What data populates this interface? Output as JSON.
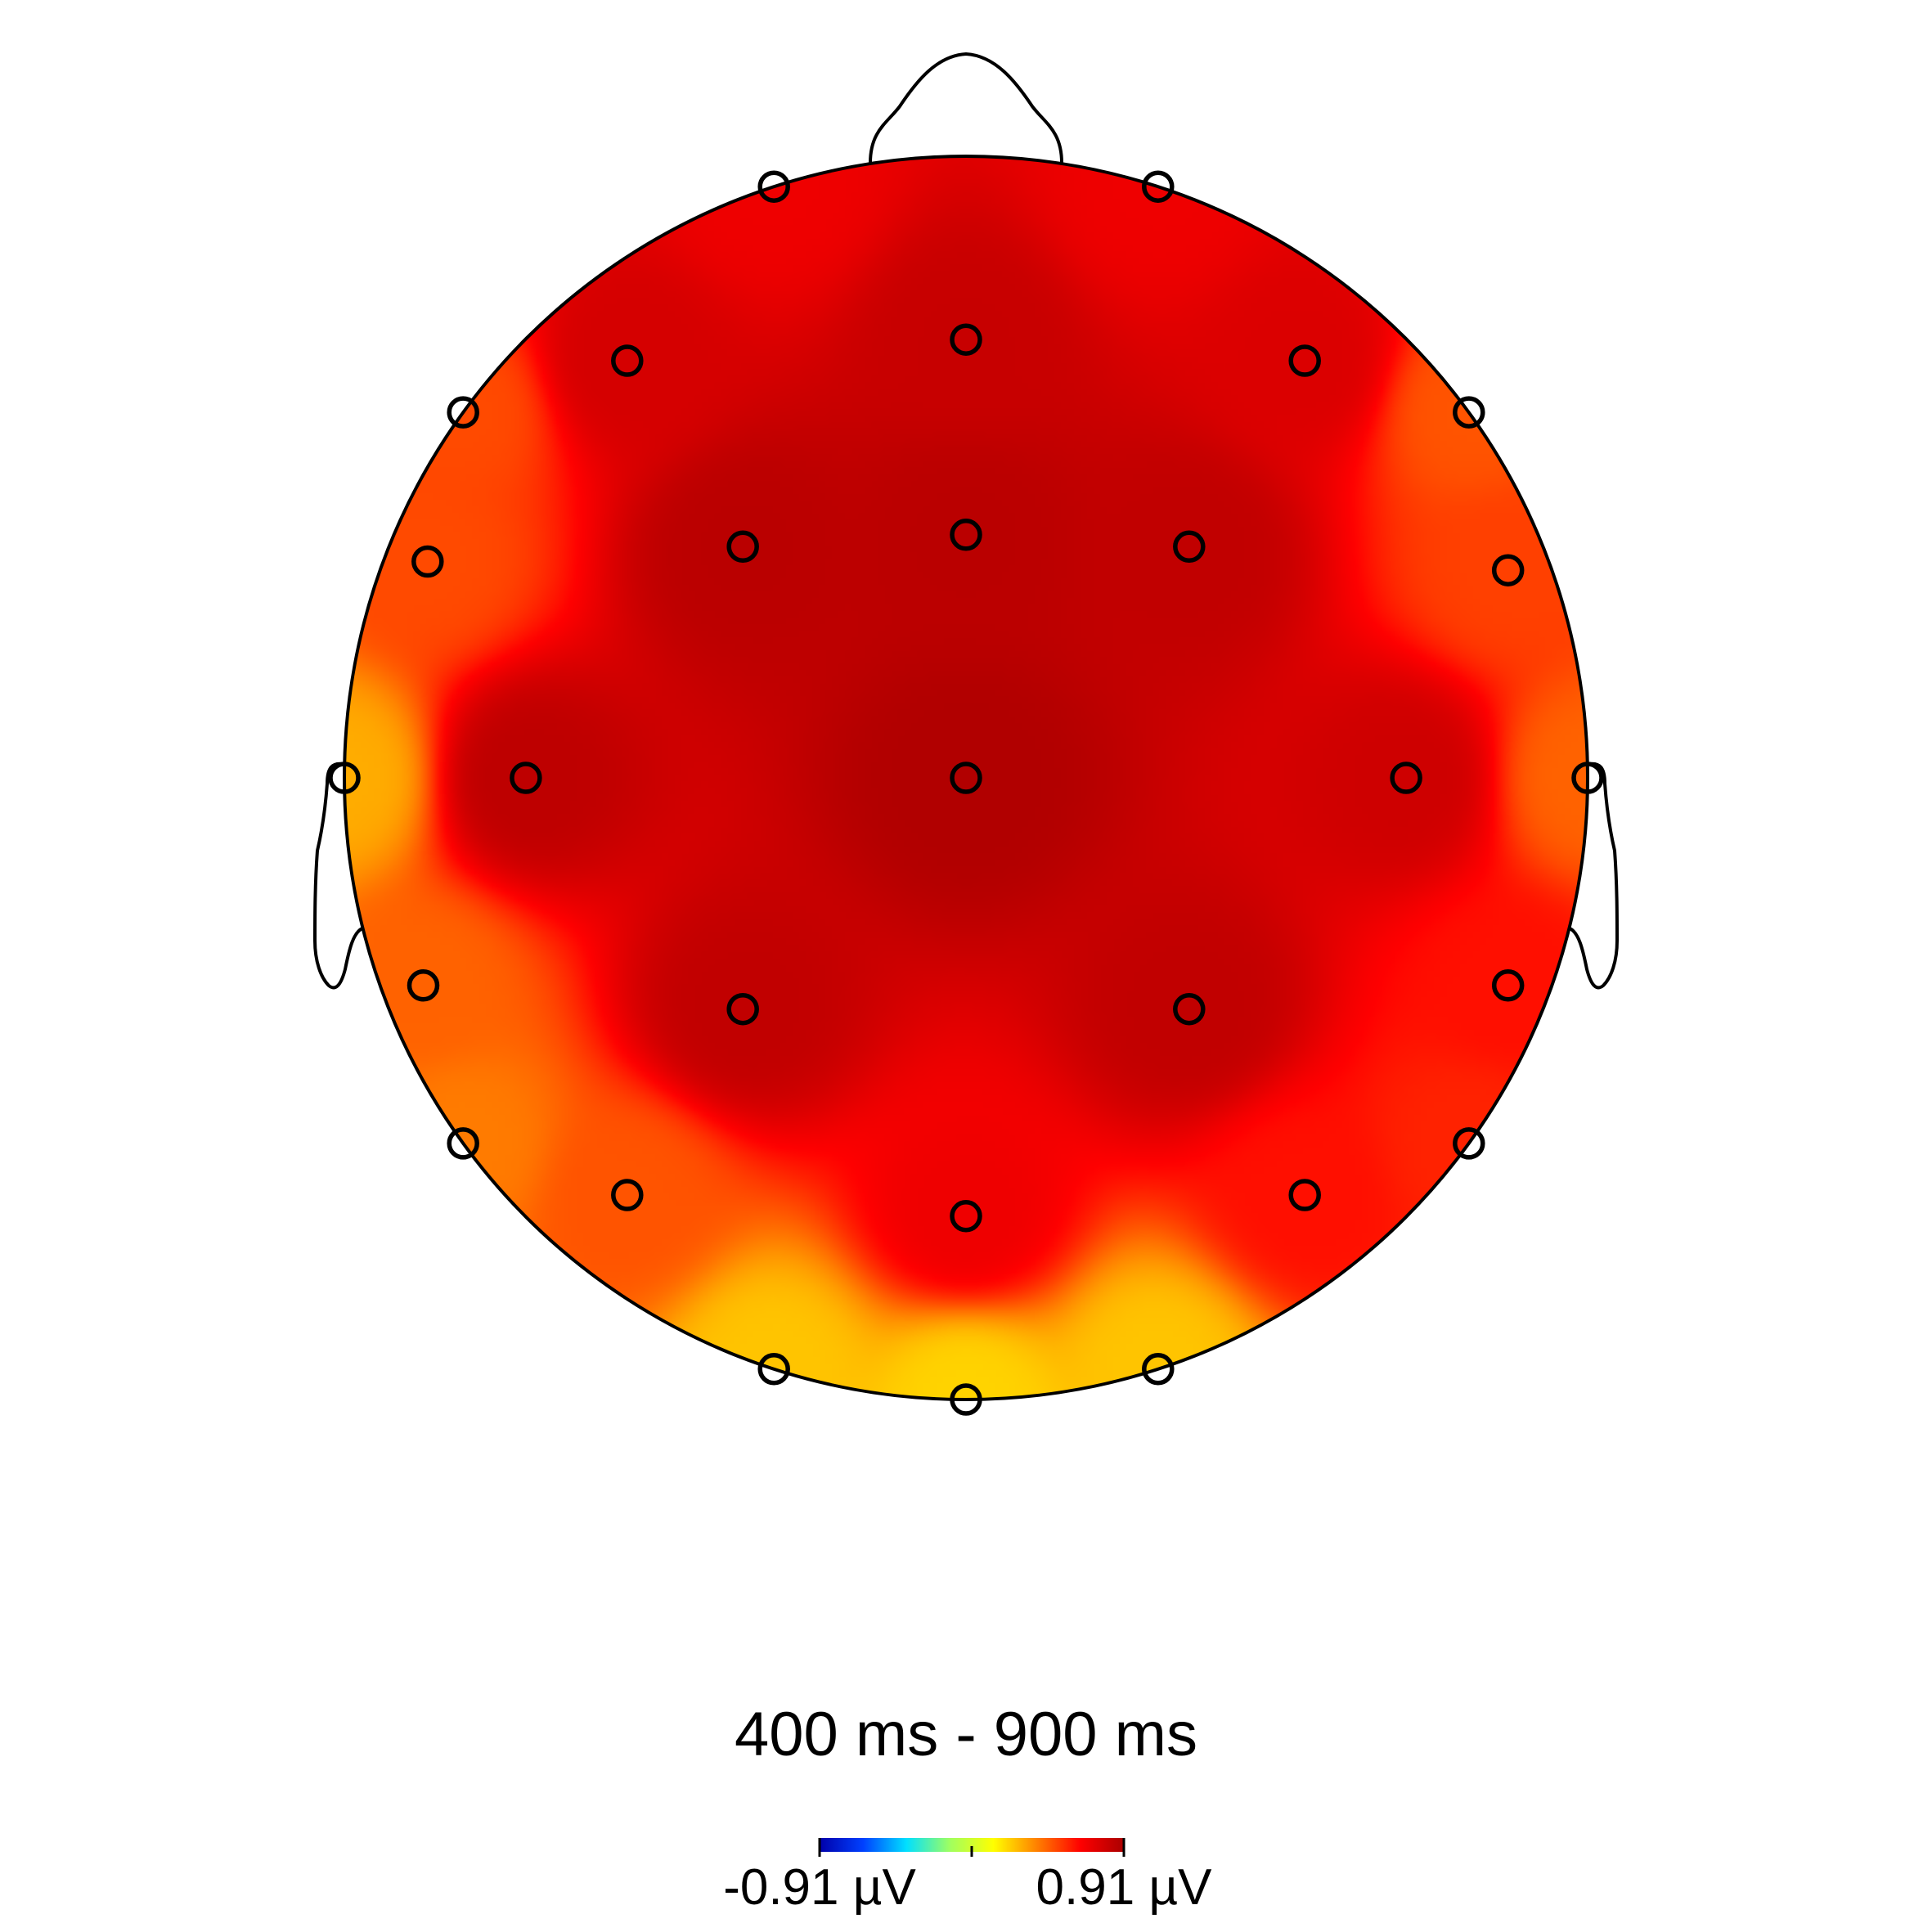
{
  "chart_data": {
    "type": "heatmap",
    "title": "400 ms - 900 ms",
    "colorbar": {
      "min_label": "-0.91 µV",
      "max_label": "0.91 µV",
      "min": -0.91,
      "max": 0.91,
      "colormap": [
        "#0000aa",
        "#0040ff",
        "#00e0ff",
        "#a0ff60",
        "#ffff00",
        "#ff8000",
        "#ff0000",
        "#aa0000"
      ]
    },
    "electrodes": [
      {
        "x": -0.309,
        "y": 0.951,
        "v": 0.7
      },
      {
        "x": 0.309,
        "y": 0.951,
        "v": 0.7
      },
      {
        "x": -0.545,
        "y": 0.671,
        "v": 0.78
      },
      {
        "x": 0.0,
        "y": 0.705,
        "v": 0.82
      },
      {
        "x": 0.545,
        "y": 0.671,
        "v": 0.76
      },
      {
        "x": -0.809,
        "y": 0.588,
        "v": 0.5
      },
      {
        "x": 0.809,
        "y": 0.588,
        "v": 0.48
      },
      {
        "x": -0.866,
        "y": 0.348,
        "v": 0.5
      },
      {
        "x": -0.359,
        "y": 0.372,
        "v": 0.86
      },
      {
        "x": 0.0,
        "y": 0.391,
        "v": 0.86
      },
      {
        "x": 0.359,
        "y": 0.372,
        "v": 0.84
      },
      {
        "x": 0.872,
        "y": 0.334,
        "v": 0.52
      },
      {
        "x": -1.0,
        "y": 0.0,
        "v": 0.3
      },
      {
        "x": -0.708,
        "y": 0.0,
        "v": 0.85
      },
      {
        "x": 0.0,
        "y": 0.0,
        "v": 0.89
      },
      {
        "x": 0.708,
        "y": 0.0,
        "v": 0.8
      },
      {
        "x": 1.0,
        "y": 0.0,
        "v": 0.45
      },
      {
        "x": -0.873,
        "y": -0.334,
        "v": 0.45
      },
      {
        "x": -0.359,
        "y": -0.372,
        "v": 0.84
      },
      {
        "x": 0.359,
        "y": -0.372,
        "v": 0.84
      },
      {
        "x": 0.872,
        "y": -0.334,
        "v": 0.62
      },
      {
        "x": -0.809,
        "y": -0.588,
        "v": 0.4
      },
      {
        "x": -0.545,
        "y": -0.671,
        "v": 0.48
      },
      {
        "x": 0.0,
        "y": -0.705,
        "v": 0.7
      },
      {
        "x": 0.545,
        "y": -0.671,
        "v": 0.62
      },
      {
        "x": 0.809,
        "y": -0.588,
        "v": 0.58
      },
      {
        "x": -0.309,
        "y": -0.951,
        "v": 0.25
      },
      {
        "x": 0.0,
        "y": -1.0,
        "v": 0.22
      },
      {
        "x": 0.309,
        "y": -0.951,
        "v": 0.25
      }
    ]
  }
}
